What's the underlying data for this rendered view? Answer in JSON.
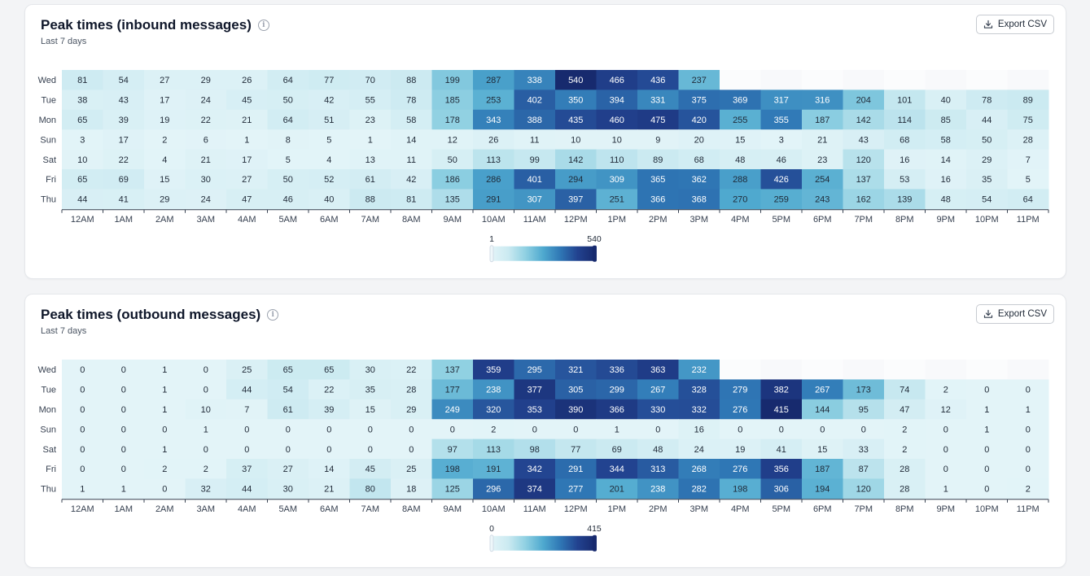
{
  "colors": {
    "scale": [
      "#e3f4f8",
      "#cbeaf1",
      "#8fd0e2",
      "#4fa9cf",
      "#2f77b5",
      "#22428f",
      "#172a6e"
    ],
    "text_dark": "#1f2937",
    "text_light": "#ffffff"
  },
  "icons": {
    "info": "info-icon",
    "export": "download-icon"
  },
  "inbound": {
    "title": "Peak times (inbound messages)",
    "subtitle": "Last 7 days",
    "export_label": "Export CSV",
    "legend_min": "1",
    "legend_max": "540"
  },
  "outbound": {
    "title": "Peak times (outbound messages)",
    "subtitle": "Last 7 days",
    "export_label": "Export CSV",
    "legend_min": "0",
    "legend_max": "415"
  },
  "chart_data": [
    {
      "type": "heatmap",
      "title": "Peak times (inbound messages)",
      "subtitle": "Last 7 days",
      "rows": [
        "Wed",
        "Tue",
        "Mon",
        "Sun",
        "Sat",
        "Fri",
        "Thu"
      ],
      "columns": [
        "12AM",
        "1AM",
        "2AM",
        "3AM",
        "4AM",
        "5AM",
        "6AM",
        "7AM",
        "8AM",
        "9AM",
        "10AM",
        "11AM",
        "12PM",
        "1PM",
        "2PM",
        "3PM",
        "4PM",
        "5PM",
        "6PM",
        "7PM",
        "8PM",
        "9PM",
        "10PM",
        "11PM"
      ],
      "values": [
        [
          81,
          54,
          27,
          29,
          26,
          64,
          77,
          70,
          88,
          199,
          287,
          338,
          540,
          466,
          436,
          237,
          null,
          null,
          null,
          null,
          null,
          null,
          null,
          null
        ],
        [
          38,
          43,
          17,
          24,
          45,
          50,
          42,
          55,
          78,
          185,
          253,
          402,
          350,
          394,
          331,
          375,
          369,
          317,
          316,
          204,
          101,
          40,
          78,
          89
        ],
        [
          65,
          39,
          19,
          22,
          21,
          64,
          51,
          23,
          58,
          178,
          343,
          388,
          435,
          460,
          475,
          420,
          255,
          355,
          187,
          142,
          114,
          85,
          44,
          75
        ],
        [
          3,
          17,
          2,
          6,
          1,
          8,
          5,
          1,
          14,
          12,
          26,
          11,
          10,
          10,
          9,
          20,
          15,
          3,
          21,
          43,
          68,
          58,
          50,
          28
        ],
        [
          10,
          22,
          4,
          21,
          17,
          5,
          4,
          13,
          11,
          50,
          113,
          99,
          142,
          110,
          89,
          68,
          48,
          46,
          23,
          120,
          16,
          14,
          29,
          7
        ],
        [
          65,
          69,
          15,
          30,
          27,
          50,
          52,
          61,
          42,
          186,
          286,
          401,
          294,
          309,
          365,
          362,
          288,
          426,
          254,
          137,
          53,
          16,
          35,
          5
        ],
        [
          44,
          41,
          29,
          24,
          47,
          46,
          40,
          88,
          81,
          135,
          291,
          307,
          397,
          251,
          366,
          368,
          270,
          259,
          243,
          162,
          139,
          48,
          54,
          64
        ]
      ],
      "color_min": 1,
      "color_max": 540
    },
    {
      "type": "heatmap",
      "title": "Peak times (outbound messages)",
      "subtitle": "Last 7 days",
      "rows": [
        "Wed",
        "Tue",
        "Mon",
        "Sun",
        "Sat",
        "Fri",
        "Thu"
      ],
      "columns": [
        "12AM",
        "1AM",
        "2AM",
        "3AM",
        "4AM",
        "5AM",
        "6AM",
        "7AM",
        "8AM",
        "9AM",
        "10AM",
        "11AM",
        "12PM",
        "1PM",
        "2PM",
        "3PM",
        "4PM",
        "5PM",
        "6PM",
        "7PM",
        "8PM",
        "9PM",
        "10PM",
        "11PM"
      ],
      "values": [
        [
          0,
          0,
          1,
          0,
          25,
          65,
          65,
          30,
          22,
          137,
          359,
          295,
          321,
          336,
          363,
          232,
          null,
          null,
          null,
          null,
          null,
          null,
          null,
          null
        ],
        [
          0,
          0,
          1,
          0,
          44,
          54,
          22,
          35,
          28,
          177,
          238,
          377,
          305,
          299,
          267,
          328,
          279,
          382,
          267,
          173,
          74,
          2,
          0,
          0
        ],
        [
          0,
          0,
          1,
          10,
          7,
          61,
          39,
          15,
          29,
          249,
          320,
          353,
          390,
          366,
          330,
          332,
          276,
          415,
          144,
          95,
          47,
          12,
          1,
          1
        ],
        [
          0,
          0,
          0,
          1,
          0,
          0,
          0,
          0,
          0,
          0,
          2,
          0,
          0,
          1,
          0,
          16,
          0,
          0,
          0,
          0,
          2,
          0,
          1,
          0
        ],
        [
          0,
          0,
          1,
          0,
          0,
          0,
          0,
          0,
          0,
          97,
          113,
          98,
          77,
          69,
          48,
          24,
          19,
          41,
          15,
          33,
          2,
          0,
          0,
          0
        ],
        [
          0,
          0,
          2,
          2,
          37,
          27,
          14,
          45,
          25,
          198,
          191,
          342,
          291,
          344,
          313,
          268,
          276,
          356,
          187,
          87,
          28,
          0,
          0,
          0
        ],
        [
          1,
          1,
          0,
          32,
          44,
          30,
          21,
          80,
          18,
          125,
          296,
          374,
          277,
          201,
          238,
          282,
          198,
          306,
          194,
          120,
          28,
          1,
          0,
          2
        ]
      ],
      "color_min": 0,
      "color_max": 415
    }
  ]
}
